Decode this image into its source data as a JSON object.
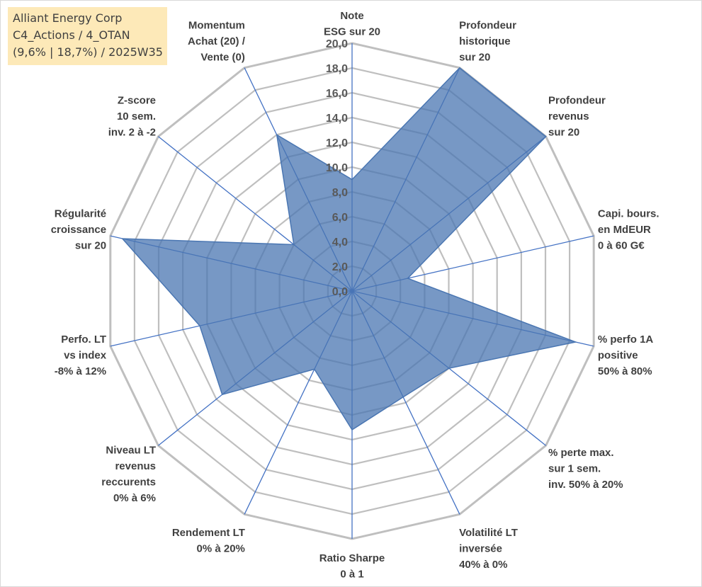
{
  "title_box": {
    "line1": "Alliant Energy Corp",
    "line2": "C4_Actions / 4_OTAN",
    "line3": "(9,6% | 18,7%) / 2025W35"
  },
  "colors": {
    "fill": "#4a76b2",
    "grid": "#bfbfbf",
    "spoke": "#4472c4",
    "title_bg": "#fde9b8"
  },
  "chart_data": {
    "type": "radar",
    "rlim": [
      0,
      20
    ],
    "tick_step": 2,
    "tick_labels": [
      "0,0",
      "2,0",
      "4,0",
      "6,0",
      "8,0",
      "10,0",
      "12,0",
      "14,0",
      "16,0",
      "18,0",
      "20,0"
    ],
    "axes": [
      {
        "label": [
          "Note",
          "ESG sur 20"
        ],
        "value": 9.0
      },
      {
        "label": [
          "Profondeur",
          "historique",
          "sur 20"
        ],
        "value": 20.0
      },
      {
        "label": [
          "Profondeur",
          "revenus",
          "sur 20"
        ],
        "value": 20.0
      },
      {
        "label": [
          "Capi. bours.",
          "en MdEUR",
          "0 à 60 G€"
        ],
        "value": 4.6
      },
      {
        "label": [
          "% perfo 1A",
          "positive",
          "50% à 80%"
        ],
        "value": 18.5
      },
      {
        "label": [
          "% perte max.",
          "sur 1 sem.",
          "inv. 50% à 20%"
        ],
        "value": 10.0
      },
      {
        "label": [
          "Volatilité LT",
          "inversée",
          "40% à 0%"
        ],
        "value": 9.5
      },
      {
        "label": [
          "Ratio Sharpe",
          "0 à 1"
        ],
        "value": 11.2
      },
      {
        "label": [
          "Rendement LT",
          "0% à 20%"
        ],
        "value": 7.0
      },
      {
        "label": [
          "Niveau LT",
          "revenus",
          "reccurents",
          "0% à 6%"
        ],
        "value": 13.4
      },
      {
        "label": [
          "Perfo. LT",
          "vs index",
          "-8% à 12%"
        ],
        "value": 12.6
      },
      {
        "label": [
          "Régularité",
          "croissance",
          "sur 20"
        ],
        "value": 19.0
      },
      {
        "label": [
          "Z-score",
          "10 sem.",
          "inv. 2 à -2"
        ],
        "value": 6.0
      },
      {
        "label": [
          "Momentum",
          "Achat (20) /",
          "Vente (0)"
        ],
        "value": 14.0
      }
    ]
  }
}
